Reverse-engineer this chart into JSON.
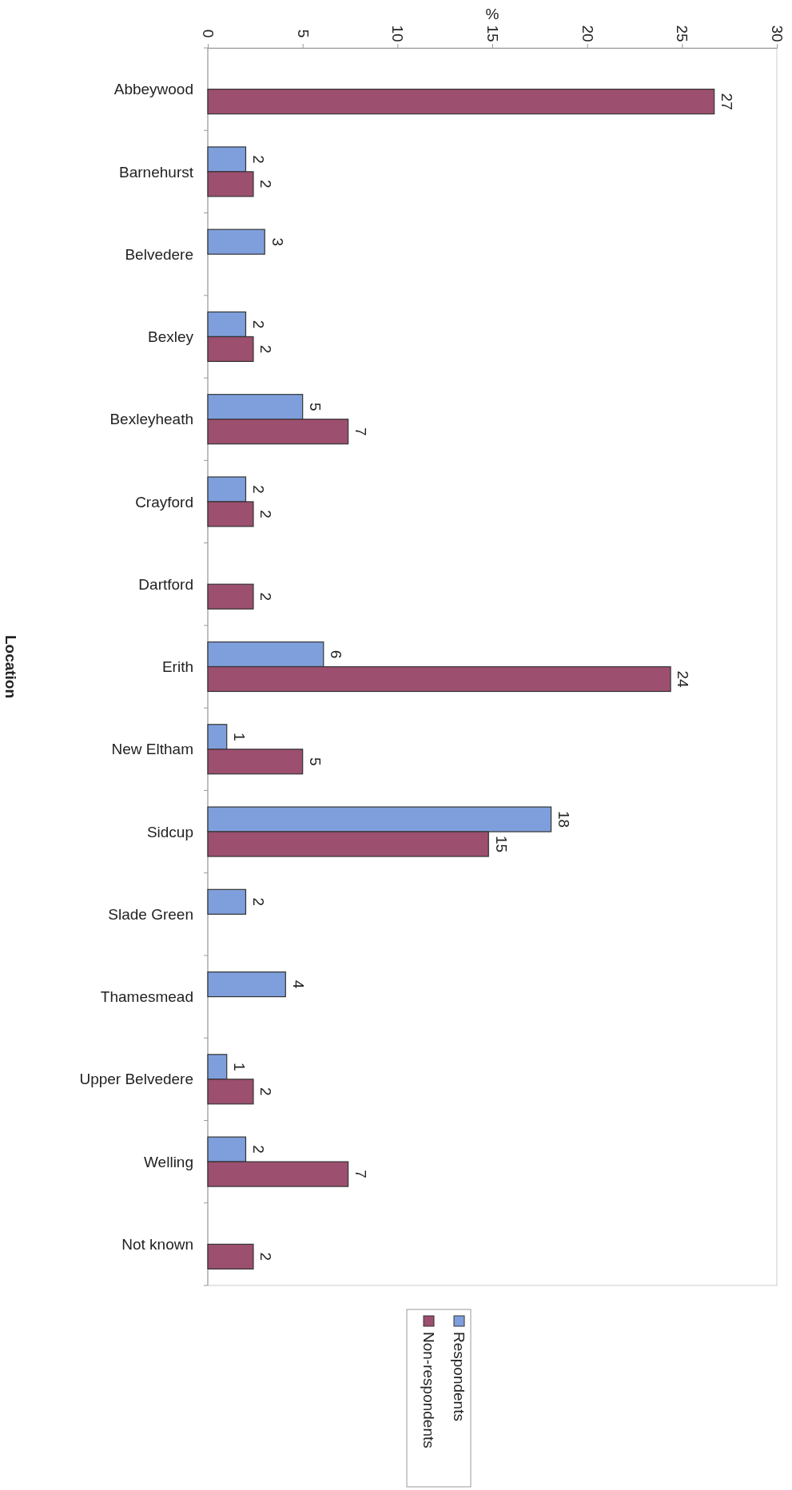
{
  "chart_data": {
    "type": "bar",
    "orientation": "horizontal",
    "xlabel": "%",
    "ylabel": "Location",
    "categories": [
      "Abbeywood",
      "Barnehurst",
      "Belvedere",
      "Bexley",
      "Bexleyheath",
      "Crayford",
      "Dartford",
      "Erith",
      "New Eltham",
      "Sidcup",
      "Slade Green",
      "Thamesmead",
      "Upper Belvedere",
      "Welling",
      "Not known"
    ],
    "series": [
      {
        "name": "Respondents",
        "color": "#7f9fdc",
        "values": [
          null,
          2.0,
          3.0,
          2.0,
          5.0,
          2.0,
          null,
          6.1,
          1.0,
          18.1,
          2.0,
          4.1,
          1.0,
          2.0,
          null
        ],
        "value_labels": [
          null,
          "2",
          "3",
          "2",
          "5",
          "2",
          null,
          "6",
          "1",
          "18",
          "2",
          "4",
          "1",
          "2",
          null
        ]
      },
      {
        "name": "Non-respondents",
        "color": "#9c4f6e",
        "values": [
          26.7,
          2.4,
          null,
          2.4,
          7.4,
          2.4,
          2.4,
          24.4,
          5.0,
          14.8,
          null,
          null,
          2.4,
          7.4,
          2.4
        ],
        "value_labels": [
          "27",
          "2",
          null,
          "2",
          "7",
          "2",
          "2",
          "24",
          "5",
          "15",
          null,
          null,
          "2",
          "7",
          "2"
        ]
      }
    ],
    "xlim": [
      0,
      30
    ],
    "xticks": [
      0,
      5,
      10,
      15,
      20,
      25,
      30
    ],
    "legend": "bottom"
  }
}
